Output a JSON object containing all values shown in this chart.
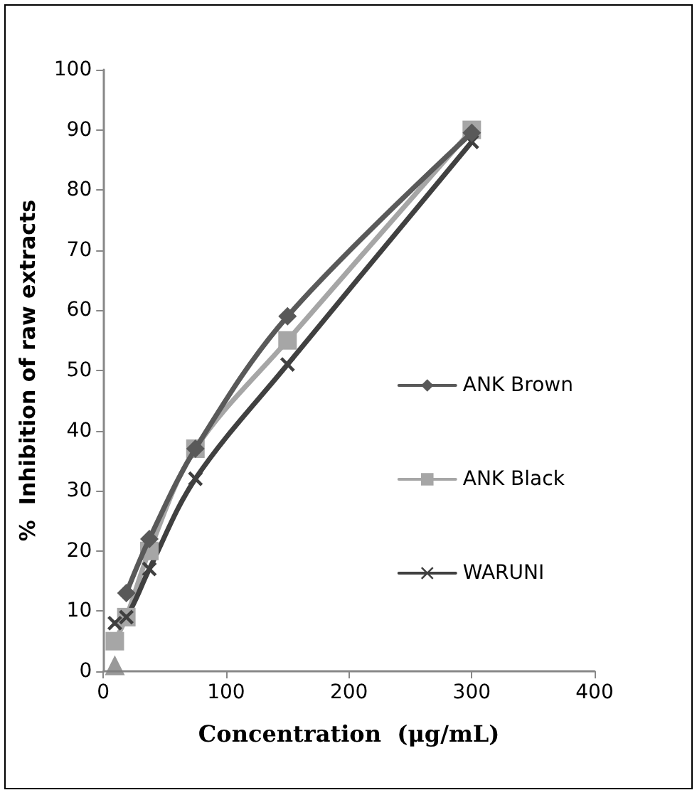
{
  "chart_data": {
    "type": "line",
    "xlabel": "Concentration  (μg/mL)",
    "ylabel": "%  Inhibition of raw extracts",
    "xlim": [
      0,
      400
    ],
    "xticks": [
      0,
      100,
      200,
      300,
      400
    ],
    "ylim": [
      0,
      100
    ],
    "yticks": [
      0,
      10,
      20,
      30,
      40,
      50,
      60,
      70,
      80,
      90,
      100
    ],
    "legend": "right",
    "series": [
      {
        "name": "ANK Brown",
        "color": "#595959",
        "marker": "diamond",
        "x": [
          18.75,
          37.5,
          75,
          150,
          300
        ],
        "values": [
          13,
          22,
          37,
          59,
          89.5
        ]
      },
      {
        "name": "ANK Black",
        "color": "#a6a6a6",
        "marker": "square",
        "x": [
          9.375,
          18.75,
          37.5,
          75,
          150,
          300
        ],
        "values": [
          5,
          9,
          20,
          37,
          55,
          90
        ]
      },
      {
        "name": "WARUNI",
        "color": "#404040",
        "marker": "cross",
        "x": [
          9.375,
          18.75,
          37.5,
          75,
          150,
          300
        ],
        "values": [
          8,
          9,
          17,
          32,
          51,
          88
        ]
      },
      {
        "type": "scatter",
        "color": "#808080",
        "marker": "triangle",
        "x": [
          9.375
        ],
        "values": [
          1
        ]
      }
    ]
  }
}
